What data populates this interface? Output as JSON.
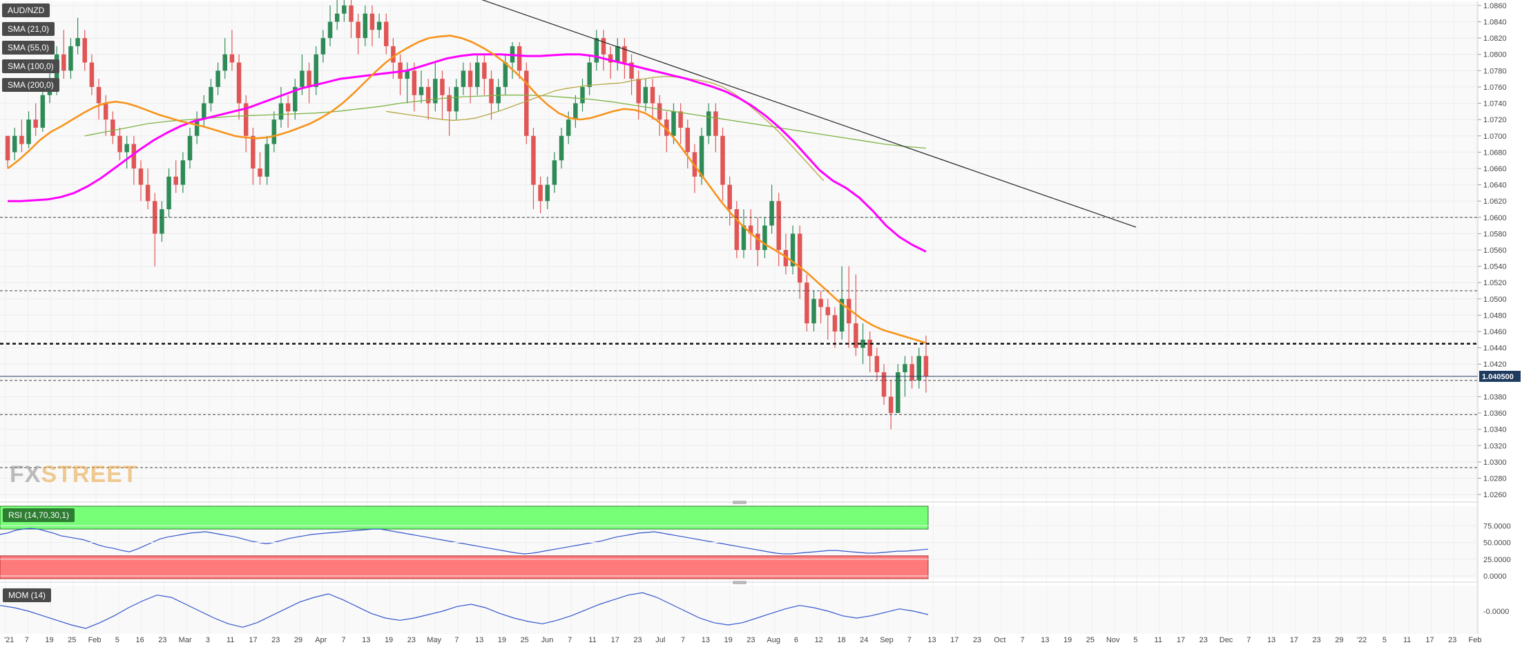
{
  "symbol": "AUD/NZD",
  "watermark": {
    "part1": "FX",
    "part2": "STREET"
  },
  "indicators": {
    "sma21": "SMA (21,0)",
    "sma55": "SMA (55,0)",
    "sma100": "SMA (100,0)",
    "sma200": "SMA (200,0)",
    "rsi": "RSI (14,70,30,1)",
    "mom": "MOM (14)"
  },
  "colors": {
    "up": "#2e8b57",
    "down": "#e05555",
    "sma21": "#f7931a",
    "sma55": "#ff00ff",
    "sma100": "#b5a642",
    "sma200": "#7cb342",
    "trendline": "#222222",
    "rsi_line": "#3355cc",
    "rsi_over": "#77ff77",
    "rsi_under": "#ff7b7b",
    "price_tag": "#1f3a5f"
  },
  "price_tag": "1.040500",
  "chart_data": {
    "type": "candlestick",
    "price_ticks": [
      "1.0860",
      "1.0840",
      "1.0820",
      "1.0800",
      "1.0780",
      "1.0760",
      "1.0740",
      "1.0720",
      "1.0700",
      "1.0680",
      "1.0660",
      "1.0640",
      "1.0620",
      "1.0600",
      "1.0580",
      "1.0560",
      "1.0540",
      "1.0520",
      "1.0500",
      "1.0480",
      "1.0460",
      "1.0440",
      "1.0420",
      "1.0380",
      "1.0360",
      "1.0340",
      "1.0320",
      "1.0300",
      "1.0280",
      "1.0260"
    ],
    "ylim": [
      1.0255,
      1.0865
    ],
    "rsi_ticks": [
      "75.0000",
      "50.0000",
      "25.0000",
      "0.0000"
    ],
    "rsi_range": [
      0,
      100
    ],
    "rsi_levels": [
      70,
      30
    ],
    "mom_ticks": [
      "-0.0000"
    ],
    "x_ticks": [
      "'21",
      "7",
      "19",
      "25",
      "Feb",
      "5",
      "16",
      "23",
      "Mar",
      "3",
      "11",
      "17",
      "23",
      "29",
      "Apr",
      "7",
      "13",
      "19",
      "23",
      "May",
      "7",
      "13",
      "19",
      "25",
      "Jun",
      "7",
      "11",
      "17",
      "23",
      "Jul",
      "7",
      "13",
      "19",
      "23",
      "Aug",
      "6",
      "12",
      "18",
      "24",
      "Sep",
      "7",
      "13",
      "17",
      "23",
      "Oct",
      "7",
      "13",
      "19",
      "25",
      "Nov",
      "5",
      "11",
      "17",
      "23",
      "Dec",
      "7",
      "13",
      "17",
      "23",
      "29",
      "'22",
      "5",
      "11",
      "17",
      "23",
      "Feb"
    ],
    "horizontal_levels": [
      1.06,
      1.051,
      1.0445,
      1.04,
      1.0358,
      1.0293
    ],
    "trendline": {
      "from": [
        0,
        1.089
      ],
      "to": [
        210,
        1.0588
      ]
    },
    "candles": [
      [
        1.07,
        1.067,
        1.068,
        1.066
      ],
      [
        1.068,
        1.07,
        1.071,
        1.067
      ],
      [
        1.07,
        1.069,
        1.072,
        1.068
      ],
      [
        1.069,
        1.072,
        1.073,
        1.0685
      ],
      [
        1.072,
        1.071,
        1.074,
        1.07
      ],
      [
        1.071,
        1.075,
        1.076,
        1.0705
      ],
      [
        1.075,
        1.076,
        1.078,
        1.074
      ],
      [
        1.076,
        1.08,
        1.081,
        1.075
      ],
      [
        1.08,
        1.078,
        1.083,
        1.077
      ],
      [
        1.078,
        1.081,
        1.082,
        1.077
      ],
      [
        1.081,
        1.082,
        1.0845,
        1.08
      ],
      [
        1.082,
        1.079,
        1.083,
        1.078
      ],
      [
        1.079,
        1.076,
        1.08,
        1.075
      ],
      [
        1.076,
        1.074,
        1.077,
        1.072
      ],
      [
        1.074,
        1.072,
        1.075,
        1.07
      ],
      [
        1.072,
        1.07,
        1.073,
        1.069
      ],
      [
        1.07,
        1.068,
        1.071,
        1.067
      ],
      [
        1.068,
        1.069,
        1.07,
        1.066
      ],
      [
        1.069,
        1.066,
        1.07,
        1.064
      ],
      [
        1.066,
        1.064,
        1.067,
        1.062
      ],
      [
        1.064,
        1.062,
        1.066,
        1.061
      ],
      [
        1.062,
        1.058,
        1.063,
        1.054
      ],
      [
        1.058,
        1.061,
        1.062,
        1.057
      ],
      [
        1.061,
        1.065,
        1.066,
        1.06
      ],
      [
        1.065,
        1.064,
        1.067,
        1.063
      ],
      [
        1.064,
        1.067,
        1.068,
        1.063
      ],
      [
        1.067,
        1.07,
        1.071,
        1.066
      ],
      [
        1.07,
        1.072,
        1.073,
        1.069
      ],
      [
        1.072,
        1.074,
        1.075,
        1.071
      ],
      [
        1.074,
        1.076,
        1.077,
        1.073
      ],
      [
        1.076,
        1.078,
        1.079,
        1.075
      ],
      [
        1.078,
        1.08,
        1.082,
        1.077
      ],
      [
        1.08,
        1.079,
        1.083,
        1.078
      ],
      [
        1.079,
        1.074,
        1.08,
        1.072
      ],
      [
        1.074,
        1.07,
        1.075,
        1.068
      ],
      [
        1.07,
        1.066,
        1.071,
        1.064
      ],
      [
        1.066,
        1.065,
        1.068,
        1.064
      ],
      [
        1.065,
        1.069,
        1.07,
        1.064
      ],
      [
        1.069,
        1.072,
        1.073,
        1.068
      ],
      [
        1.072,
        1.074,
        1.076,
        1.071
      ],
      [
        1.074,
        1.073,
        1.075,
        1.071
      ],
      [
        1.073,
        1.076,
        1.077,
        1.072
      ],
      [
        1.076,
        1.078,
        1.08,
        1.075
      ],
      [
        1.078,
        1.076,
        1.079,
        1.074
      ],
      [
        1.076,
        1.08,
        1.081,
        1.075
      ],
      [
        1.08,
        1.082,
        1.083,
        1.079
      ],
      [
        1.082,
        1.084,
        1.086,
        1.081
      ],
      [
        1.084,
        1.085,
        1.087,
        1.083
      ],
      [
        1.085,
        1.086,
        1.088,
        1.084
      ],
      [
        1.086,
        1.084,
        1.087,
        1.082
      ],
      [
        1.084,
        1.082,
        1.085,
        1.08
      ],
      [
        1.082,
        1.085,
        1.086,
        1.081
      ],
      [
        1.085,
        1.083,
        1.086,
        1.081
      ],
      [
        1.083,
        1.084,
        1.085,
        1.082
      ],
      [
        1.084,
        1.081,
        1.085,
        1.08
      ],
      [
        1.081,
        1.079,
        1.082,
        1.077
      ],
      [
        1.079,
        1.077,
        1.08,
        1.075
      ],
      [
        1.077,
        1.078,
        1.079,
        1.074
      ],
      [
        1.078,
        1.075,
        1.079,
        1.073
      ],
      [
        1.075,
        1.076,
        1.078,
        1.074
      ],
      [
        1.076,
        1.074,
        1.077,
        1.072
      ],
      [
        1.074,
        1.077,
        1.079,
        1.073
      ],
      [
        1.077,
        1.075,
        1.078,
        1.072
      ],
      [
        1.075,
        1.073,
        1.076,
        1.07
      ],
      [
        1.073,
        1.076,
        1.077,
        1.072
      ],
      [
        1.076,
        1.078,
        1.079,
        1.075
      ],
      [
        1.078,
        1.076,
        1.079,
        1.074
      ],
      [
        1.076,
        1.079,
        1.08,
        1.075
      ],
      [
        1.079,
        1.077,
        1.08,
        1.075
      ],
      [
        1.077,
        1.074,
        1.078,
        1.072
      ],
      [
        1.074,
        1.076,
        1.077,
        1.073
      ],
      [
        1.076,
        1.079,
        1.08,
        1.075
      ],
      [
        1.079,
        1.081,
        1.0815,
        1.077
      ],
      [
        1.081,
        1.078,
        1.0815,
        1.077
      ],
      [
        1.078,
        1.07,
        1.079,
        1.069
      ],
      [
        1.07,
        1.064,
        1.071,
        1.061
      ],
      [
        1.064,
        1.062,
        1.065,
        1.0605
      ],
      [
        1.062,
        1.064,
        1.065,
        1.061
      ],
      [
        1.064,
        1.067,
        1.068,
        1.063
      ],
      [
        1.067,
        1.07,
        1.071,
        1.066
      ],
      [
        1.07,
        1.072,
        1.073,
        1.069
      ],
      [
        1.072,
        1.074,
        1.075,
        1.071
      ],
      [
        1.074,
        1.076,
        1.077,
        1.073
      ],
      [
        1.076,
        1.079,
        1.08,
        1.075
      ],
      [
        1.079,
        1.082,
        1.083,
        1.078
      ],
      [
        1.082,
        1.08,
        1.083,
        1.078
      ],
      [
        1.08,
        1.079,
        1.081,
        1.077
      ],
      [
        1.079,
        1.081,
        1.082,
        1.078
      ],
      [
        1.081,
        1.079,
        1.082,
        1.077
      ],
      [
        1.079,
        1.077,
        1.08,
        1.075
      ],
      [
        1.077,
        1.074,
        1.078,
        1.072
      ],
      [
        1.074,
        1.076,
        1.077,
        1.073
      ],
      [
        1.076,
        1.074,
        1.077,
        1.072
      ],
      [
        1.074,
        1.072,
        1.075,
        1.07
      ],
      [
        1.072,
        1.07,
        1.073,
        1.068
      ],
      [
        1.07,
        1.073,
        1.074,
        1.069
      ],
      [
        1.073,
        1.071,
        1.074,
        1.069
      ],
      [
        1.071,
        1.068,
        1.072,
        1.066
      ],
      [
        1.068,
        1.065,
        1.069,
        1.063
      ],
      [
        1.065,
        1.07,
        1.071,
        1.064
      ],
      [
        1.07,
        1.073,
        1.074,
        1.069
      ],
      [
        1.073,
        1.07,
        1.074,
        1.068
      ],
      [
        1.07,
        1.064,
        1.071,
        1.062
      ],
      [
        1.064,
        1.061,
        1.065,
        1.059
      ],
      [
        1.061,
        1.056,
        1.062,
        1.055
      ],
      [
        1.056,
        1.059,
        1.061,
        1.055
      ],
      [
        1.059,
        1.058,
        1.061,
        1.056
      ],
      [
        1.058,
        1.056,
        1.06,
        1.054
      ],
      [
        1.056,
        1.059,
        1.06,
        1.055
      ],
      [
        1.059,
        1.062,
        1.064,
        1.058
      ],
      [
        1.062,
        1.056,
        1.063,
        1.054
      ],
      [
        1.056,
        1.054,
        1.058,
        1.053
      ],
      [
        1.054,
        1.058,
        1.059,
        1.053
      ],
      [
        1.058,
        1.052,
        1.059,
        1.05
      ],
      [
        1.052,
        1.047,
        1.053,
        1.046
      ],
      [
        1.047,
        1.05,
        1.051,
        1.046
      ],
      [
        1.05,
        1.049,
        1.051,
        1.047
      ],
      [
        1.049,
        1.048,
        1.05,
        1.045
      ],
      [
        1.048,
        1.046,
        1.049,
        1.044
      ],
      [
        1.046,
        1.05,
        1.054,
        1.045
      ],
      [
        1.05,
        1.047,
        1.054,
        1.044
      ],
      [
        1.047,
        1.044,
        1.053,
        1.043
      ],
      [
        1.044,
        1.045,
        1.047,
        1.042
      ],
      [
        1.045,
        1.043,
        1.046,
        1.041
      ],
      [
        1.043,
        1.041,
        1.044,
        1.04
      ],
      [
        1.041,
        1.038,
        1.042,
        1.037
      ],
      [
        1.038,
        1.036,
        1.04,
        1.034
      ],
      [
        1.036,
        1.041,
        1.042,
        1.036
      ],
      [
        1.041,
        1.042,
        1.043,
        1.038
      ],
      [
        1.042,
        1.04,
        1.043,
        1.039
      ],
      [
        1.04,
        1.043,
        1.044,
        1.039
      ],
      [
        1.043,
        1.0405,
        1.0455,
        1.0385
      ]
    ],
    "sma21": [
      1.066,
      1.067,
      1.0682,
      1.0695,
      1.0705,
      1.0712,
      1.072,
      1.0728,
      1.0735,
      1.074,
      1.0742,
      1.074,
      1.0736,
      1.0731,
      1.0726,
      1.0722,
      1.0718,
      1.0715,
      1.0712,
      1.0708,
      1.0704,
      1.07,
      1.0698,
      1.0697,
      1.0698,
      1.0701,
      1.0705,
      1.071,
      1.0715,
      1.0722,
      1.073,
      1.074,
      1.0752,
      1.0765,
      1.0778,
      1.079,
      1.08,
      1.0808,
      1.0815,
      1.082,
      1.0822,
      1.0823,
      1.082,
      1.0815,
      1.0808,
      1.08,
      1.079,
      1.0778,
      1.0765,
      1.075,
      1.0738,
      1.0728,
      1.0722,
      1.072,
      1.0722,
      1.0726,
      1.073,
      1.0733,
      1.0732,
      1.0728,
      1.072,
      1.0708,
      1.0692,
      1.0674,
      1.0656,
      1.0638,
      1.062,
      1.0604,
      1.059,
      1.0578,
      1.0568,
      1.056,
      1.0552,
      1.0542,
      1.0532,
      1.052,
      1.0508,
      1.0496,
      1.0486,
      1.0476,
      1.0468,
      1.0462,
      1.0458,
      1.0454,
      1.045,
      1.0446
    ],
    "sma21_offset": 36,
    "sma55": [
      1.062,
      1.062,
      1.0621,
      1.0622,
      1.0625,
      1.063,
      1.0638,
      1.0648,
      1.066,
      1.0672,
      1.0684,
      1.0695,
      1.0704,
      1.0712,
      1.0718,
      1.0722,
      1.0726,
      1.073,
      1.0734,
      1.074,
      1.0746,
      1.0752,
      1.0758,
      1.0762,
      1.0766,
      1.077,
      1.0772,
      1.0774,
      1.0776,
      1.0778,
      1.078,
      1.0785,
      1.079,
      1.0795,
      1.0798,
      1.08,
      1.08,
      1.08,
      1.0799,
      1.0798,
      1.0798,
      1.0799,
      1.08,
      1.08,
      1.0798,
      1.0794,
      1.079,
      1.0786,
      1.0782,
      1.0778,
      1.0774,
      1.077,
      1.0765,
      1.076,
      1.0754,
      1.0746,
      1.0736,
      1.0724,
      1.071,
      1.0694,
      1.0676,
      1.0658,
      1.0645,
      1.0636,
      1.0624,
      1.0608,
      1.059,
      1.0576,
      1.0566,
      1.0558
    ],
    "sma55_step": 2,
    "sma100": [
      1.073,
      1.0728,
      1.0726,
      1.0724,
      1.0722,
      1.072,
      1.0719,
      1.072,
      1.0722,
      1.0726,
      1.073,
      1.0735,
      1.074,
      1.0745,
      1.075,
      1.0755,
      1.0758,
      1.076,
      1.0762,
      1.0763,
      1.0764,
      1.0765,
      1.0768,
      1.077,
      1.0772,
      1.0773,
      1.0772,
      1.077,
      1.0768,
      1.0765,
      1.076,
      1.0752,
      1.0742,
      1.073,
      1.0718,
      1.0705,
      1.069,
      1.0675,
      1.066,
      1.0645
    ],
    "sma100_start": 54,
    "sma200": [
      1.07,
      1.0705,
      1.071,
      1.0715,
      1.0718,
      1.072,
      1.0722,
      1.0724,
      1.0725,
      1.0726,
      1.0727,
      1.0728,
      1.073,
      1.0733,
      1.0736,
      1.074,
      1.0743,
      1.0746,
      1.0748,
      1.0749,
      1.075,
      1.075,
      1.0749,
      1.0747,
      1.0745,
      1.0742,
      1.0738,
      1.0734,
      1.073,
      1.0726,
      1.0722,
      1.0718,
      1.0714,
      1.071,
      1.0706,
      1.0702,
      1.0698,
      1.0694,
      1.069,
      1.0687,
      1.0685
    ],
    "rsi": [
      62,
      64,
      68,
      70,
      71,
      70,
      67,
      64,
      60,
      58,
      56,
      54,
      50,
      46,
      43,
      41,
      38,
      36,
      40,
      45,
      50,
      55,
      58,
      60,
      62,
      64,
      65,
      66,
      64,
      62,
      60,
      58,
      55,
      52,
      50,
      48,
      50,
      53,
      56,
      58,
      60,
      62,
      63,
      64,
      65,
      66,
      67,
      68,
      69,
      70,
      70,
      68,
      66,
      64,
      62,
      60,
      58,
      56,
      54,
      52,
      50,
      48,
      46,
      44,
      42,
      40,
      38,
      36,
      34,
      33,
      34,
      36,
      38,
      40,
      42,
      44,
      46,
      48,
      50,
      52,
      55,
      58,
      60,
      62,
      64,
      65,
      66,
      64,
      62,
      60,
      58,
      56,
      54,
      52,
      50,
      48,
      46,
      44,
      42,
      40,
      38,
      36,
      34,
      33,
      33,
      34,
      35,
      36,
      37,
      38,
      38,
      37,
      36,
      35,
      34,
      34,
      35,
      36,
      37,
      37,
      38,
      39,
      40
    ],
    "mom": [
      0.005,
      0.003,
      0.0,
      -0.004,
      -0.008,
      -0.012,
      -0.015,
      -0.01,
      -0.004,
      0.003,
      0.009,
      0.014,
      0.012,
      0.006,
      0.0,
      -0.006,
      -0.011,
      -0.014,
      -0.01,
      -0.004,
      0.002,
      0.008,
      0.012,
      0.015,
      0.01,
      0.004,
      -0.002,
      -0.006,
      -0.008,
      -0.006,
      -0.003,
      0.0,
      0.004,
      0.006,
      0.003,
      -0.002,
      -0.006,
      -0.009,
      -0.011,
      -0.008,
      -0.004,
      0.001,
      0.006,
      0.01,
      0.014,
      0.016,
      0.012,
      0.006,
      0.0,
      -0.006,
      -0.01,
      -0.012,
      -0.01,
      -0.006,
      -0.002,
      0.002,
      0.005,
      0.003,
      0.0,
      -0.004,
      -0.006,
      -0.004,
      -0.001,
      0.002,
      0.0,
      -0.003
    ]
  }
}
